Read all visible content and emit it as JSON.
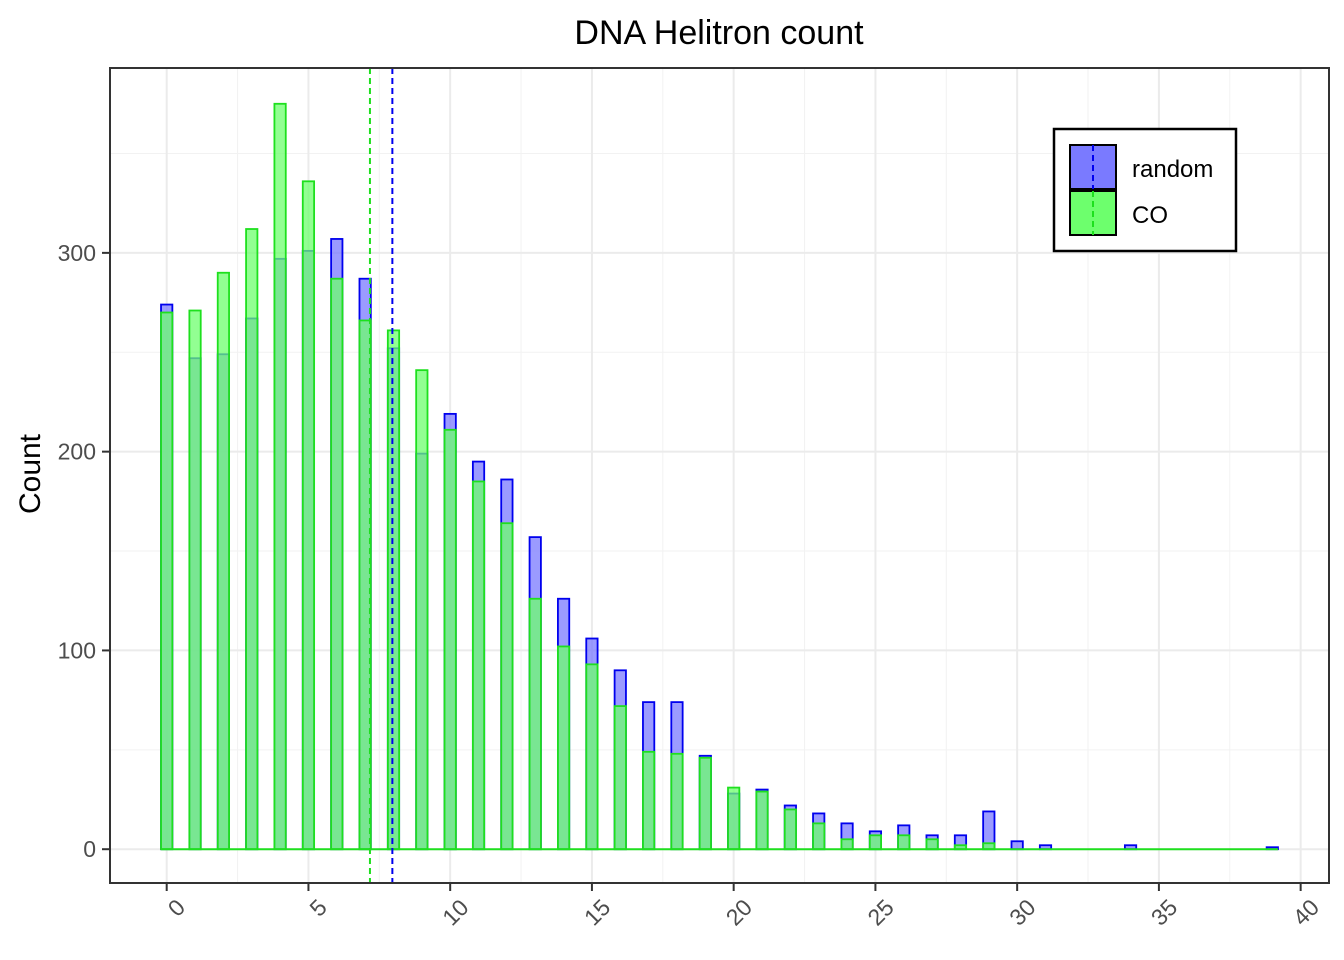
{
  "chart_data": {
    "type": "bar",
    "title": "DNA Helitron count",
    "xlabel": "",
    "ylabel": "Count",
    "xlim": [
      -2,
      41
    ],
    "ylim": [
      -17,
      393
    ],
    "x_ticks": [
      0,
      5,
      10,
      15,
      20,
      25,
      30,
      35,
      40
    ],
    "y_ticks": [
      0,
      100,
      200,
      300
    ],
    "grid": true,
    "legend_position": "top-right",
    "series": [
      {
        "name": "random",
        "fill": "#7a7aff",
        "stroke": "#0000ee",
        "mean_line": 7.96,
        "x": [
          0,
          1,
          2,
          3,
          4,
          5,
          6,
          7,
          8,
          9,
          10,
          11,
          12,
          13,
          14,
          15,
          16,
          17,
          18,
          19,
          20,
          21,
          22,
          23,
          24,
          25,
          26,
          27,
          28,
          29,
          30,
          31,
          34,
          39
        ],
        "values": [
          274,
          247,
          249,
          267,
          297,
          301,
          307,
          287,
          252,
          199,
          219,
          195,
          186,
          157,
          126,
          106,
          90,
          74,
          74,
          47,
          28,
          30,
          22,
          18,
          13,
          9,
          12,
          7,
          7,
          19,
          4,
          2,
          2,
          1
        ]
      },
      {
        "name": "CO",
        "fill": "#6dff6d",
        "stroke": "#1ee01e",
        "mean_line": 7.17,
        "x": [
          0,
          1,
          2,
          3,
          4,
          5,
          6,
          7,
          8,
          9,
          10,
          11,
          12,
          13,
          14,
          15,
          16,
          17,
          18,
          19,
          20,
          21,
          22,
          23,
          24,
          25,
          26,
          27,
          28,
          29
        ],
        "values": [
          270,
          271,
          290,
          312,
          375,
          336,
          287,
          266,
          261,
          241,
          211,
          185,
          164,
          126,
          102,
          93,
          72,
          49,
          48,
          46,
          31,
          29,
          20,
          13,
          5,
          7,
          7,
          5,
          2,
          3
        ]
      }
    ]
  }
}
